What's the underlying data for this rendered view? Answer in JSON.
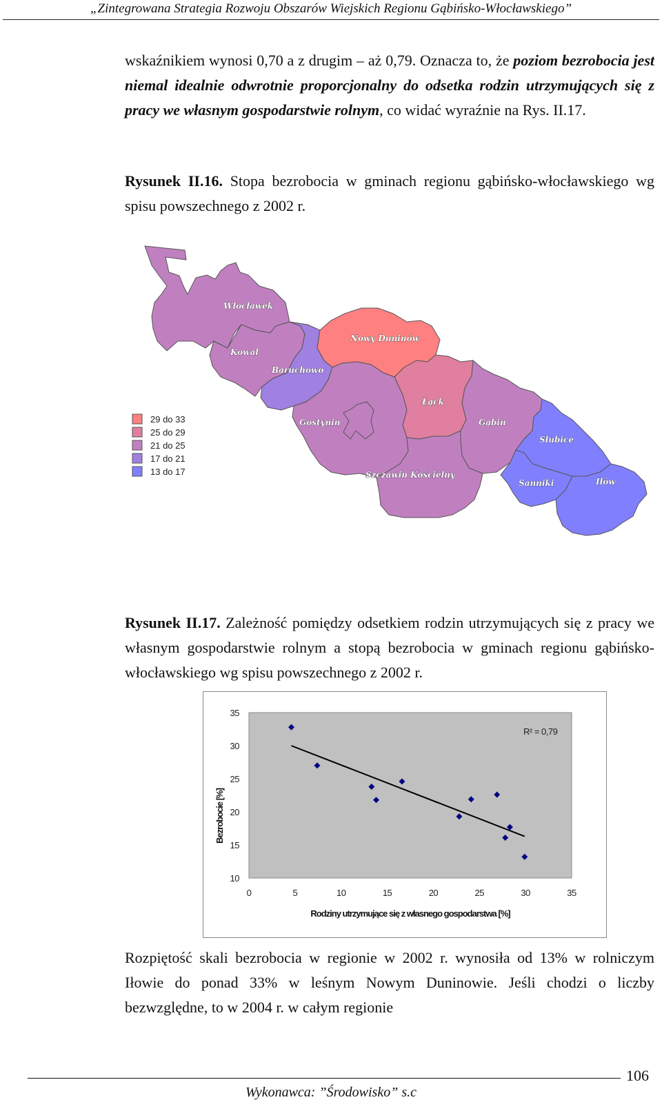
{
  "header": {
    "text": "„Zintegrowana Strategia Rozwoju Obszarów Wiejskich Regionu Gąbińsko-Włocławskiego”"
  },
  "para1": {
    "t1": "wskaźnikiem wynosi 0,70 a z drugim – aż 0,79. Oznacza to, że ",
    "emph": "poziom bezrobocia jest niemal idealnie odwrotnie proporcjonalny do odsetka rodzin utrzymujących się z pracy we własnym gospodarstwie rolnym",
    "t2": ", co widać wyraźnie na Rys. II.17."
  },
  "fig16": {
    "label": "Rysunek II.16.",
    "caption": " Stopa bezrobocia w gminach regionu gąbińsko-włocławskiego wg spisu powszechnego z 2002 r."
  },
  "map": {
    "legend": [
      {
        "label": "29 do 33",
        "color": "#ff8080"
      },
      {
        "label": "25 do 29",
        "color": "#e07fa0"
      },
      {
        "label": "21 do 25",
        "color": "#c080c0"
      },
      {
        "label": "17 do 21",
        "color": "#a080e0"
      },
      {
        "label": "13 do 17",
        "color": "#8080ff"
      }
    ],
    "regions": [
      {
        "name": "Włocławek"
      },
      {
        "name": "Kowal"
      },
      {
        "name": "Baruchowo"
      },
      {
        "name": "Nowy Duninów"
      },
      {
        "name": "Łąck"
      },
      {
        "name": "Gostynin"
      },
      {
        "name": "Gąbin"
      },
      {
        "name": "Słubice"
      },
      {
        "name": "Szczawin Kościelny"
      },
      {
        "name": "Sanniki"
      },
      {
        "name": "Iłów"
      }
    ]
  },
  "fig17": {
    "label": "Rysunek II.17.",
    "caption": " Zależność pomiędzy odsetkiem rodzin utrzymujących się z pracy we własnym gospodarstwie rolnym a stopą bezrobocia w gminach regionu gąbińsko-włocławskiego wg spisu powszechnego z 2002 r."
  },
  "chart_data": {
    "type": "scatter",
    "xlabel": "Rodziny utrzymujące się z własnego gospodarstwa [%]",
    "ylabel": "Bezrobocie [%]",
    "xlim": [
      0,
      35
    ],
    "ylim": [
      10,
      35
    ],
    "xticks": [
      "0",
      "5",
      "10",
      "15",
      "20",
      "25",
      "30",
      "35"
    ],
    "yticks": [
      "10",
      "15",
      "20",
      "25",
      "30",
      "35"
    ],
    "grid": false,
    "legend": "none",
    "annotation": "R² = 0,79",
    "marker_color": "#000080",
    "points": [
      {
        "x": 4.6,
        "y": 32.8
      },
      {
        "x": 7.4,
        "y": 27.0
      },
      {
        "x": 13.3,
        "y": 23.8
      },
      {
        "x": 13.8,
        "y": 21.8
      },
      {
        "x": 16.6,
        "y": 24.6
      },
      {
        "x": 22.8,
        "y": 19.3
      },
      {
        "x": 24.1,
        "y": 21.9
      },
      {
        "x": 26.9,
        "y": 22.6
      },
      {
        "x": 27.8,
        "y": 16.1
      },
      {
        "x": 28.3,
        "y": 17.7
      },
      {
        "x": 29.9,
        "y": 13.2
      }
    ],
    "trendline": {
      "x1": 4.6,
      "y1": 30.0,
      "x2": 29.9,
      "y2": 16.3
    }
  },
  "para2": {
    "text": "Rozpiętość skali bezrobocia w regionie w 2002 r. wynosiła od 13% w rolniczym Iłowie do ponad 33% w leśnym Nowym Duninowie. Jeśli chodzi o liczby bezwzględne, to w 2004 r. w całym regionie"
  },
  "footer": {
    "page_number": "106",
    "text": "Wykonawca: ”Środowisko” s.c"
  }
}
